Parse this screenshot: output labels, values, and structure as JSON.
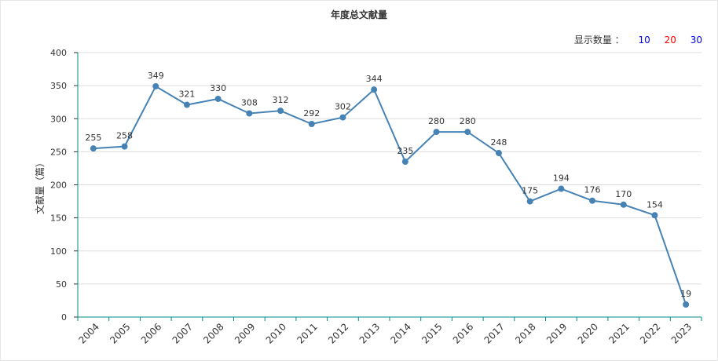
{
  "display_count": {
    "label": "显示数量 ：",
    "options": [
      {
        "label": "10",
        "color": "#0000ff"
      },
      {
        "label": "20",
        "color": "#ff0000"
      },
      {
        "label": "30",
        "color": "#0000ff"
      }
    ]
  },
  "chart_data": {
    "type": "line",
    "title": "年度总文献量",
    "xlabel": "",
    "ylabel": "文献量（篇）",
    "ylim": [
      0,
      400
    ],
    "yticks": [
      0,
      50,
      100,
      150,
      200,
      250,
      300,
      350,
      400
    ],
    "grid": true,
    "line_color": "#4682b4",
    "categories": [
      "2004",
      "2005",
      "2006",
      "2007",
      "2008",
      "2009",
      "2010",
      "2011",
      "2012",
      "2013",
      "2014",
      "2015",
      "2016",
      "2017",
      "2018",
      "2019",
      "2020",
      "2021",
      "2022",
      "2023"
    ],
    "series": [
      {
        "values": [
          255,
          258,
          349,
          321,
          330,
          308,
          312,
          292,
          302,
          344,
          235,
          280,
          280,
          248,
          175,
          194,
          176,
          170,
          154,
          19
        ]
      }
    ]
  }
}
